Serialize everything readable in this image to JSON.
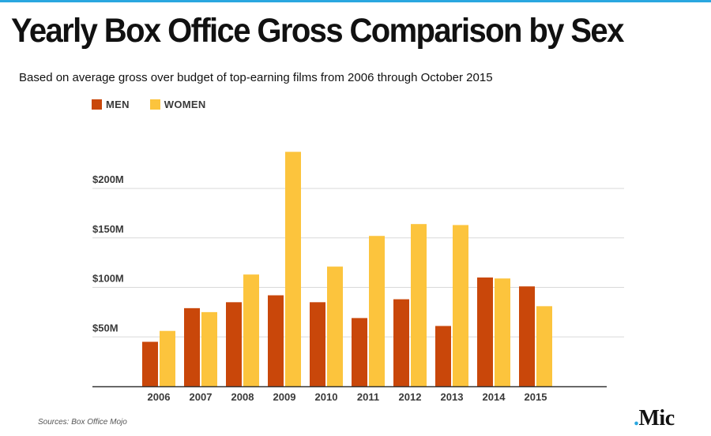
{
  "header": {
    "title": "Yearly Box Office Gross Comparison by Sex",
    "subtitle": "Based on average gross over budget of top-earning films from 2006 through October 2015"
  },
  "legend": {
    "men_label": "MEN",
    "women_label": "WOMEN"
  },
  "footer": {
    "source": "Sources: Box Office Mojo",
    "brand_dot": ".",
    "brand_name": "Mic"
  },
  "colors": {
    "men": "#c9470a",
    "women": "#fcc43d",
    "grid": "#d9d9d9",
    "axis": "#333333",
    "accent": "#2aa7e0"
  },
  "chart_data": {
    "type": "bar",
    "title": "Yearly Box Office Gross Comparison by Sex",
    "subtitle": "Based on average gross over budget of top-earning films from 2006 through October 2015",
    "xlabel": "",
    "ylabel": "",
    "categories": [
      "2006",
      "2007",
      "2008",
      "2009",
      "2010",
      "2011",
      "2012",
      "2013",
      "2014",
      "2015"
    ],
    "series": [
      {
        "name": "MEN",
        "values": [
          45,
          79,
          85,
          92,
          85,
          69,
          88,
          61,
          110,
          101
        ]
      },
      {
        "name": "WOMEN",
        "values": [
          56,
          75,
          113,
          237,
          121,
          152,
          164,
          163,
          109,
          81
        ]
      }
    ],
    "y_ticks": [
      {
        "value": 50,
        "label": "$50M"
      },
      {
        "value": 100,
        "label": "$100M"
      },
      {
        "value": 150,
        "label": "$150M"
      },
      {
        "value": 200,
        "label": "$200M"
      }
    ],
    "ylim": [
      0,
      240
    ],
    "grid": true,
    "legend_position": "top-left"
  }
}
